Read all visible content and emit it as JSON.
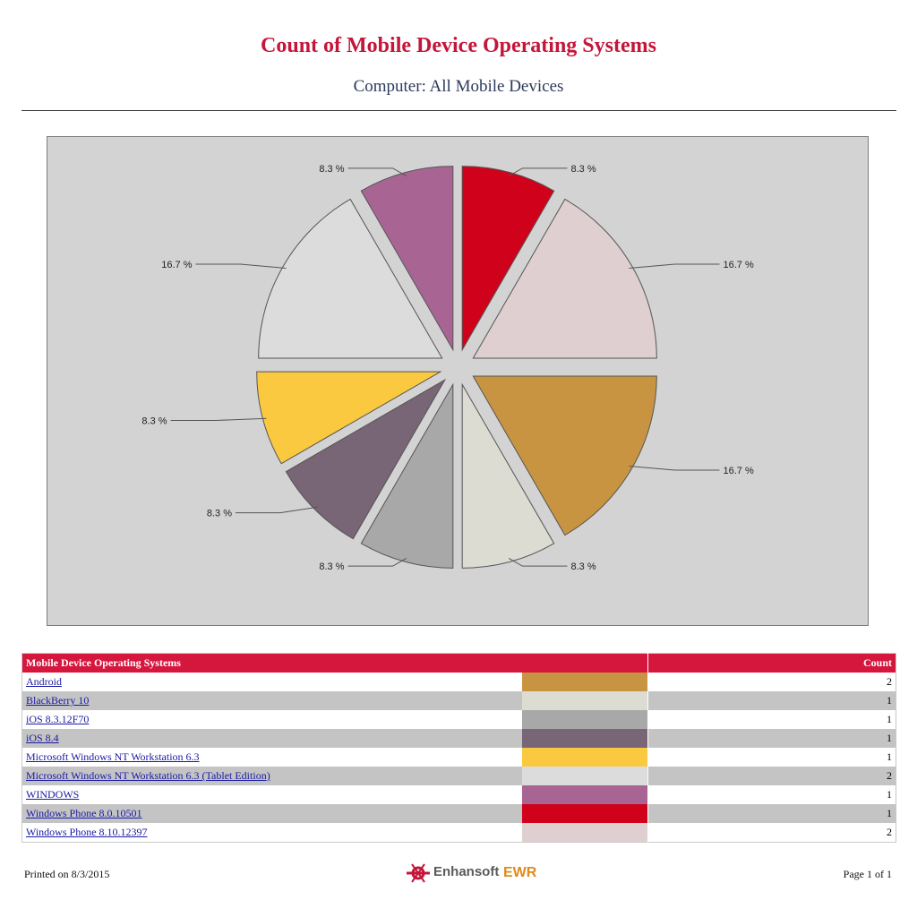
{
  "header": {
    "title": "Count of Mobile Device Operating Systems",
    "subtitle": "Computer: All Mobile Devices"
  },
  "chart_data": {
    "type": "pie",
    "slices": [
      {
        "label": "Windows Phone 8.0.10501",
        "value": 1,
        "percent_label": "8.3 %",
        "color": "#d0021b"
      },
      {
        "label": "Windows Phone 8.10.12397",
        "value": 2,
        "percent_label": "16.7 %",
        "color": "#dfcfd0"
      },
      {
        "label": "Android",
        "value": 2,
        "percent_label": "16.7 %",
        "color": "#c99442"
      },
      {
        "label": "BlackBerry 10",
        "value": 1,
        "percent_label": "8.3 %",
        "color": "#dcdcd2"
      },
      {
        "label": "iOS 8.3.12F70",
        "value": 1,
        "percent_label": "8.3 %",
        "color": "#a8a8a8"
      },
      {
        "label": "iOS 8.4",
        "value": 1,
        "percent_label": "8.3 %",
        "color": "#786576"
      },
      {
        "label": "Microsoft Windows NT Workstation 6.3",
        "value": 1,
        "percent_label": "8.3 %",
        "color": "#fbc940"
      },
      {
        "label": "Microsoft Windows NT Workstation 6.3 (Tablet Edition)",
        "value": 2,
        "percent_label": "16.7 %",
        "color": "#dcdcdc"
      },
      {
        "label": "WINDOWS",
        "value": 1,
        "percent_label": "8.3 %",
        "color": "#a86594"
      }
    ]
  },
  "table": {
    "header_name": "Mobile Device Operating Systems",
    "header_count": "Count",
    "rows": [
      {
        "name": "Android",
        "count": "2",
        "color": "#c99442"
      },
      {
        "name": "BlackBerry 10",
        "count": "1",
        "color": "#dcdcd2"
      },
      {
        "name": "iOS 8.3.12F70",
        "count": "1",
        "color": "#a8a8a8"
      },
      {
        "name": "iOS 8.4",
        "count": "1",
        "color": "#786576"
      },
      {
        "name": "Microsoft Windows NT Workstation 6.3",
        "count": "1",
        "color": "#fbc940"
      },
      {
        "name": "Microsoft Windows NT Workstation 6.3 (Tablet Edition)",
        "count": "2",
        "color": "#dcdcdc"
      },
      {
        "name": "WINDOWS",
        "count": "1",
        "color": "#a86594"
      },
      {
        "name": "Windows Phone 8.0.10501",
        "count": "1",
        "color": "#d0021b"
      },
      {
        "name": "Windows Phone 8.10.12397",
        "count": "2",
        "color": "#dfcfd0"
      }
    ]
  },
  "footer": {
    "printed": "Printed on 8/3/2015",
    "page": "Page 1 of 1",
    "logo_text": "Enhansoft",
    "logo_suffix": "EWR"
  }
}
